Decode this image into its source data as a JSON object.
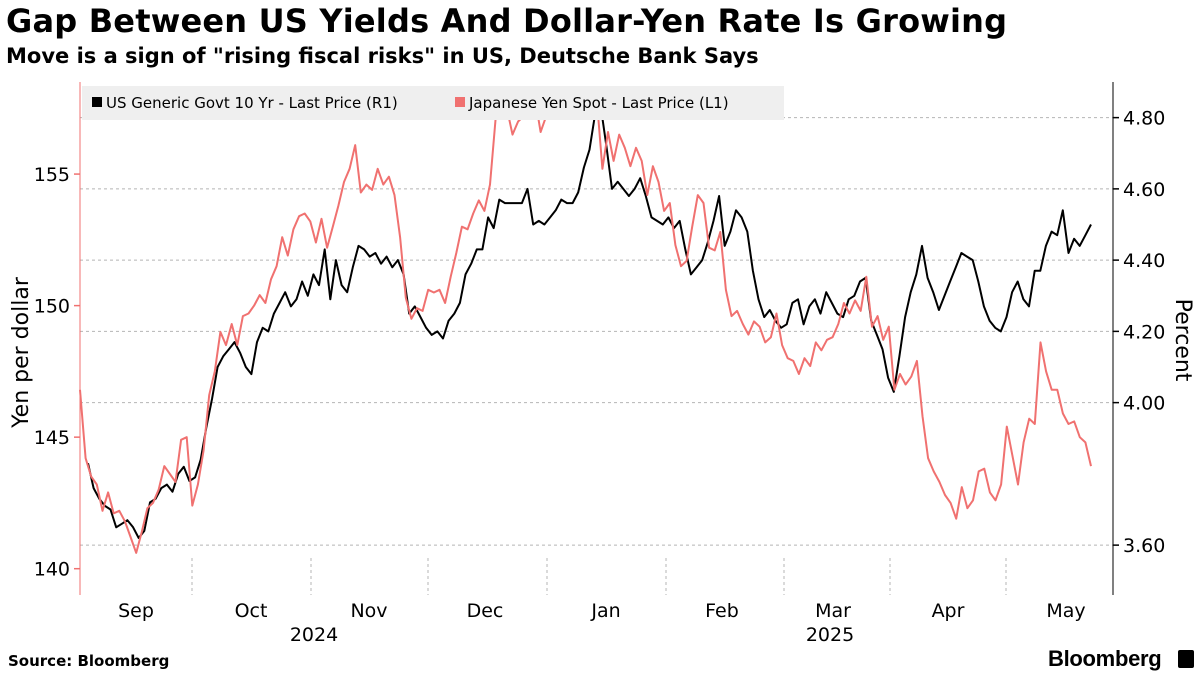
{
  "title": "Gap Between US Yields And Dollar-Yen Rate Is Growing",
  "subtitle": "Move is a sign of \"rising fiscal risks\" in US, Deutsche Bank Says",
  "source": "Source: Bloomberg",
  "brand": "Bloomberg",
  "chart_data": {
    "type": "line",
    "legend_position": "top-left",
    "grid": "horizontal dashed",
    "left_axis": {
      "label": "Yen per dollar",
      "ticks": [
        140,
        145,
        150,
        155
      ],
      "range": [
        139,
        158.5
      ]
    },
    "right_axis": {
      "label": "Percent",
      "ticks": [
        "3.60",
        "4.00",
        "4.20",
        "4.40",
        "4.60",
        "4.80"
      ],
      "range": [
        3.46,
        4.9
      ]
    },
    "x_axis": {
      "months": [
        "Sep",
        "Oct",
        "Nov",
        "Dec",
        "Jan",
        "Feb",
        "Mar",
        "Apr",
        "May"
      ],
      "years": [
        "2024",
        "2025"
      ]
    },
    "series": [
      {
        "name": "US Generic Govt 10 Yr - Last Price (R1)",
        "axis": "right",
        "color": "#000000",
        "values": [
          3.83,
          3.76,
          3.73,
          3.71,
          3.7,
          3.65,
          3.66,
          3.67,
          3.65,
          3.62,
          3.64,
          3.72,
          3.73,
          3.76,
          3.77,
          3.75,
          3.8,
          3.82,
          3.78,
          3.79,
          3.84,
          3.93,
          4.01,
          4.1,
          4.13,
          4.15,
          4.17,
          4.14,
          4.1,
          4.08,
          4.17,
          4.21,
          4.2,
          4.25,
          4.28,
          4.31,
          4.27,
          4.29,
          4.34,
          4.3,
          4.36,
          4.33,
          4.43,
          4.29,
          4.4,
          4.33,
          4.31,
          4.38,
          4.44,
          4.43,
          4.41,
          4.42,
          4.39,
          4.41,
          4.38,
          4.4,
          4.36,
          4.25,
          4.27,
          4.24,
          4.21,
          4.19,
          4.2,
          4.18,
          4.23,
          4.25,
          4.28,
          4.36,
          4.39,
          4.43,
          4.43,
          4.52,
          4.49,
          4.57,
          4.56,
          4.56,
          4.56,
          4.56,
          4.6,
          4.5,
          4.51,
          4.5,
          4.52,
          4.54,
          4.57,
          4.56,
          4.56,
          4.59,
          4.66,
          4.71,
          4.81,
          4.83,
          4.72,
          4.6,
          4.62,
          4.6,
          4.58,
          4.6,
          4.63,
          4.58,
          4.52,
          4.51,
          4.5,
          4.52,
          4.49,
          4.51,
          4.43,
          4.36,
          4.38,
          4.4,
          4.45,
          4.51,
          4.58,
          4.44,
          4.48,
          4.54,
          4.52,
          4.48,
          4.37,
          4.29,
          4.24,
          4.26,
          4.23,
          4.21,
          4.22,
          4.28,
          4.29,
          4.22,
          4.27,
          4.29,
          4.25,
          4.31,
          4.28,
          4.25,
          4.24,
          4.29,
          4.3,
          4.34,
          4.35,
          4.23,
          4.19,
          4.15,
          4.07,
          4.03,
          4.13,
          4.24,
          4.31,
          4.36,
          4.44,
          4.35,
          4.31,
          4.26,
          4.3,
          4.34,
          4.38,
          4.42,
          4.41,
          4.4,
          4.34,
          4.27,
          4.23,
          4.21,
          4.2,
          4.24,
          4.31,
          4.34,
          4.29,
          4.27,
          4.37,
          4.37,
          4.44,
          4.48,
          4.47,
          4.54,
          4.42,
          4.46,
          4.44,
          4.47,
          4.5
        ]
      },
      {
        "name": "Japanese Yen Spot - Last Price (L1)",
        "axis": "left",
        "color": "#f07170",
        "values": [
          146.8,
          144.2,
          143.5,
          143.2,
          142.2,
          142.9,
          142.1,
          142.2,
          141.8,
          141.2,
          140.6,
          141.4,
          142.3,
          142.5,
          143.0,
          143.9,
          143.6,
          143.3,
          144.9,
          145.0,
          142.4,
          143.2,
          144.5,
          146.6,
          147.5,
          149.0,
          148.5,
          149.3,
          148.5,
          149.6,
          149.7,
          150.0,
          150.4,
          150.1,
          151.0,
          151.5,
          152.6,
          151.9,
          152.9,
          153.4,
          153.5,
          153.2,
          152.4,
          153.3,
          152.2,
          153.0,
          153.8,
          154.7,
          155.2,
          156.1,
          154.3,
          154.6,
          154.4,
          155.2,
          154.6,
          154.9,
          154.2,
          152.6,
          150.3,
          149.5,
          149.9,
          149.8,
          150.6,
          150.5,
          150.6,
          150.1,
          151.1,
          152.0,
          153.0,
          152.9,
          153.5,
          154.0,
          153.6,
          154.6,
          157.1,
          157.2,
          157.5,
          156.5,
          157.0,
          157.2,
          157.3,
          157.9,
          156.6,
          157.2,
          157.4,
          157.2,
          157.3,
          157.4,
          158.1,
          157.9,
          158.2,
          157.3,
          157.9,
          155.2,
          156.6,
          155.5,
          156.5,
          156.0,
          155.3,
          156.0,
          155.5,
          154.2,
          155.3,
          154.7,
          153.6,
          153.9,
          152.3,
          151.5,
          151.7,
          153.0,
          154.2,
          153.9,
          152.2,
          152.1,
          152.8,
          150.6,
          149.6,
          149.8,
          149.3,
          148.9,
          149.4,
          149.2,
          148.6,
          148.8,
          149.7,
          148.5,
          148.0,
          147.9,
          147.4,
          148.0,
          147.7,
          148.6,
          148.3,
          148.7,
          148.8,
          149.3,
          150.1,
          149.7,
          150.2,
          149.8,
          151.1,
          149.2,
          149.6,
          148.7,
          149.2,
          146.8,
          147.4,
          147.0,
          147.3,
          147.9,
          145.8,
          144.2,
          143.7,
          143.3,
          142.8,
          142.5,
          141.9,
          143.1,
          142.3,
          142.6,
          143.7,
          143.8,
          142.9,
          142.6,
          143.2,
          145.4,
          144.3,
          143.2,
          144.8,
          145.7,
          145.5,
          148.6,
          147.5,
          146.8,
          146.8,
          145.9,
          145.5,
          145.6,
          145.0,
          144.8,
          143.9
        ]
      }
    ]
  }
}
